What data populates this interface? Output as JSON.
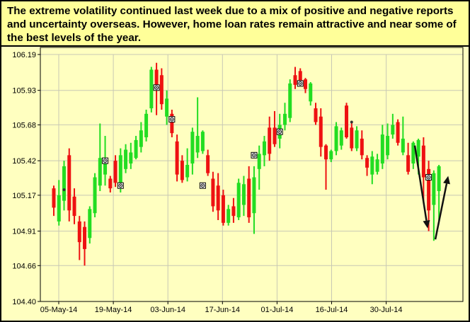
{
  "banner": {
    "text": "The extreme volatility continued last week due to a mix of positive and negative reports and uncertainty overseas.  However, home loan rates remain attractive and near some of the best levels of the year."
  },
  "colors": {
    "up": "#22dd22",
    "down": "#ee1111",
    "grid": "#c8c8b4",
    "plot_bg": "#ffffc0",
    "banner_bg": "#ffff99"
  },
  "chart_data": {
    "type": "candlestick",
    "ylim": [
      104.4,
      106.19
    ],
    "y_ticks": [
      "106.19",
      "105.93",
      "105.68",
      "105.42",
      "105.17",
      "104.91",
      "104.66",
      "104.40"
    ],
    "x_ticks": [
      "05-May-14",
      "19-May-14",
      "03-Jun-14",
      "17-Jun-14",
      "01-Jul-14",
      "16-Jul-14",
      "30-Jul-14"
    ],
    "grid": true,
    "candles": [
      {
        "dir": "down",
        "open": 105.22,
        "close": 105.08,
        "high": 105.24,
        "low": 105.02
      },
      {
        "dir": "up",
        "open": 104.98,
        "close": 105.17,
        "high": 105.28,
        "low": 104.95
      },
      {
        "dir": "up",
        "open": 105.13,
        "close": 105.38,
        "high": 105.42,
        "low": 105.06
      },
      {
        "dir": "down",
        "open": 105.46,
        "close": 105.06,
        "high": 105.51,
        "low": 104.98
      },
      {
        "dir": "down",
        "open": 105.16,
        "close": 105.02,
        "high": 105.22,
        "low": 104.96
      },
      {
        "dir": "down",
        "open": 104.98,
        "close": 104.83,
        "high": 105.02,
        "low": 104.7
      },
      {
        "dir": "down",
        "open": 104.94,
        "close": 104.78,
        "high": 104.98,
        "low": 104.66
      },
      {
        "dir": "up",
        "open": 104.86,
        "close": 105.07,
        "high": 105.09,
        "low": 104.82
      },
      {
        "dir": "up",
        "open": 105.04,
        "close": 105.3,
        "high": 105.33,
        "low": 105.01
      },
      {
        "dir": "up",
        "open": 105.24,
        "close": 105.44,
        "high": 105.69,
        "low": 105.2
      },
      {
        "dir": "up",
        "open": 105.32,
        "close": 105.44,
        "high": 105.6,
        "low": 105.24
      },
      {
        "dir": "down",
        "open": 105.29,
        "close": 105.22,
        "high": 105.31,
        "low": 105.19
      },
      {
        "dir": "down",
        "open": 105.42,
        "close": 105.26,
        "high": 105.46,
        "low": 105.23
      },
      {
        "dir": "up",
        "open": 105.26,
        "close": 105.46,
        "high": 105.51,
        "low": 105.19
      },
      {
        "dir": "up",
        "open": 105.36,
        "close": 105.5,
        "high": 105.54,
        "low": 105.33
      },
      {
        "dir": "up",
        "open": 105.4,
        "close": 105.48,
        "high": 105.55,
        "low": 105.36
      },
      {
        "dir": "up",
        "open": 105.44,
        "close": 105.57,
        "high": 105.6,
        "low": 105.43
      },
      {
        "dir": "up",
        "open": 105.52,
        "close": 105.64,
        "high": 105.7,
        "low": 105.48
      },
      {
        "dir": "up",
        "open": 105.59,
        "close": 105.76,
        "high": 105.79,
        "low": 105.56
      },
      {
        "dir": "up",
        "open": 105.8,
        "close": 106.08,
        "high": 106.1,
        "low": 105.77
      },
      {
        "dir": "down",
        "open": 106.08,
        "close": 105.93,
        "high": 106.13,
        "low": 105.75
      },
      {
        "dir": "down",
        "open": 106.04,
        "close": 105.83,
        "high": 106.09,
        "low": 105.79
      },
      {
        "dir": "up",
        "open": 105.74,
        "close": 105.87,
        "high": 105.93,
        "low": 105.68
      },
      {
        "dir": "down",
        "open": 105.76,
        "close": 105.62,
        "high": 105.79,
        "low": 105.59
      },
      {
        "dir": "down",
        "open": 105.56,
        "close": 105.32,
        "high": 105.61,
        "low": 105.27
      },
      {
        "dir": "down",
        "open": 105.42,
        "close": 105.28,
        "high": 105.46,
        "low": 105.26
      },
      {
        "dir": "up",
        "open": 105.3,
        "close": 105.39,
        "high": 105.51,
        "low": 105.27
      },
      {
        "dir": "up",
        "open": 105.4,
        "close": 105.63,
        "high": 105.66,
        "low": 105.32
      },
      {
        "dir": "up",
        "open": 105.48,
        "close": 105.6,
        "high": 105.88,
        "low": 105.44
      },
      {
        "dir": "up",
        "open": 105.49,
        "close": 105.63,
        "high": 105.64,
        "low": 105.47
      },
      {
        "dir": "down",
        "open": 105.46,
        "close": 105.33,
        "high": 105.5,
        "low": 105.31
      },
      {
        "dir": "down",
        "open": 105.29,
        "close": 105.09,
        "high": 105.34,
        "low": 105.05
      },
      {
        "dir": "down",
        "open": 105.24,
        "close": 105.06,
        "high": 105.33,
        "low": 104.99
      },
      {
        "dir": "down",
        "open": 105.17,
        "close": 104.97,
        "high": 105.21,
        "low": 104.95
      },
      {
        "dir": "up",
        "open": 104.97,
        "close": 105.07,
        "high": 105.1,
        "low": 104.95
      },
      {
        "dir": "down",
        "open": 105.09,
        "close": 105.02,
        "high": 105.15,
        "low": 104.97
      },
      {
        "dir": "up",
        "open": 105.01,
        "close": 105.26,
        "high": 105.29,
        "low": 104.99
      },
      {
        "dir": "up",
        "open": 105.1,
        "close": 105.25,
        "high": 105.31,
        "low": 105.02
      },
      {
        "dir": "down",
        "open": 105.29,
        "close": 105.01,
        "high": 105.38,
        "low": 104.97
      },
      {
        "dir": "up",
        "open": 105.04,
        "close": 105.3,
        "high": 105.38,
        "low": 104.89
      },
      {
        "dir": "up",
        "open": 105.36,
        "close": 105.47,
        "high": 105.53,
        "low": 105.21
      },
      {
        "dir": "up",
        "open": 105.46,
        "close": 105.56,
        "high": 105.6,
        "low": 105.38
      },
      {
        "dir": "down",
        "open": 105.66,
        "close": 105.47,
        "high": 105.74,
        "low": 105.42
      },
      {
        "dir": "down",
        "open": 105.66,
        "close": 105.54,
        "high": 105.78,
        "low": 105.52
      },
      {
        "dir": "up",
        "open": 105.58,
        "close": 105.68,
        "high": 105.76,
        "low": 105.51
      },
      {
        "dir": "up",
        "open": 105.68,
        "close": 105.76,
        "high": 105.84,
        "low": 105.64
      },
      {
        "dir": "up",
        "open": 105.73,
        "close": 105.98,
        "high": 106.01,
        "low": 105.7
      },
      {
        "dir": "down",
        "open": 106.04,
        "close": 105.97,
        "high": 106.1,
        "low": 105.94
      },
      {
        "dir": "down",
        "open": 106.07,
        "close": 105.98,
        "high": 106.09,
        "low": 105.96
      },
      {
        "dir": "down",
        "open": 106.01,
        "close": 105.94,
        "high": 106.02,
        "low": 105.91
      },
      {
        "dir": "up",
        "open": 105.85,
        "close": 105.98,
        "high": 105.99,
        "low": 105.82
      },
      {
        "dir": "down",
        "open": 105.8,
        "close": 105.7,
        "high": 105.84,
        "low": 105.68
      },
      {
        "dir": "down",
        "open": 105.74,
        "close": 105.52,
        "high": 105.8,
        "low": 105.45
      },
      {
        "dir": "down",
        "open": 105.53,
        "close": 105.43,
        "high": 105.54,
        "low": 105.21
      },
      {
        "dir": "up",
        "open": 105.43,
        "close": 105.49,
        "high": 105.5,
        "low": 105.41
      },
      {
        "dir": "up",
        "open": 105.49,
        "close": 105.67,
        "high": 105.7,
        "low": 105.46
      },
      {
        "dir": "up",
        "open": 105.53,
        "close": 105.64,
        "high": 105.66,
        "low": 105.5
      },
      {
        "dir": "down",
        "open": 105.82,
        "close": 105.59,
        "high": 105.84,
        "low": 105.58
      },
      {
        "dir": "down",
        "open": 105.66,
        "close": 105.51,
        "high": 105.7,
        "low": 105.49
      },
      {
        "dir": "up",
        "open": 105.51,
        "close": 105.64,
        "high": 105.67,
        "low": 105.49
      },
      {
        "dir": "down",
        "open": 105.58,
        "close": 105.46,
        "high": 105.64,
        "low": 105.43
      },
      {
        "dir": "down",
        "open": 105.44,
        "close": 105.37,
        "high": 105.46,
        "low": 105.31
      },
      {
        "dir": "up",
        "open": 105.32,
        "close": 105.45,
        "high": 105.49,
        "low": 105.25
      },
      {
        "dir": "up",
        "open": 105.34,
        "close": 105.43,
        "high": 105.47,
        "low": 105.32
      },
      {
        "dir": "up",
        "open": 105.4,
        "close": 105.61,
        "high": 105.68,
        "low": 105.36
      },
      {
        "dir": "up",
        "open": 105.46,
        "close": 105.6,
        "high": 105.69,
        "low": 105.43
      },
      {
        "dir": "up",
        "open": 105.61,
        "close": 105.68,
        "high": 105.76,
        "low": 105.58
      },
      {
        "dir": "down",
        "open": 105.7,
        "close": 105.55,
        "high": 105.72,
        "low": 105.53
      },
      {
        "dir": "up",
        "open": 105.48,
        "close": 105.58,
        "high": 105.74,
        "low": 105.46
      },
      {
        "dir": "down",
        "open": 105.46,
        "close": 105.34,
        "high": 105.55,
        "low": 105.32
      },
      {
        "dir": "up",
        "open": 105.4,
        "close": 105.55,
        "high": 105.56,
        "low": 105.36
      },
      {
        "dir": "up",
        "open": 105.45,
        "close": 105.57,
        "high": 105.58,
        "low": 105.32
      },
      {
        "dir": "down",
        "open": 105.53,
        "close": 105.3,
        "high": 105.59,
        "low": 105.12
      },
      {
        "dir": "down",
        "open": 105.36,
        "close": 105.06,
        "high": 105.42,
        "low": 104.91
      },
      {
        "dir": "up",
        "open": 105.1,
        "close": 105.33,
        "high": 105.35,
        "low": 104.84
      },
      {
        "dir": "up",
        "open": 105.2,
        "close": 105.38,
        "high": 105.39,
        "low": 104.98
      }
    ],
    "markers": [
      {
        "index": 2,
        "value": 105.21,
        "style": "dot"
      },
      {
        "index": 10,
        "value": 105.42,
        "style": "boxed-dot"
      },
      {
        "index": 13,
        "value": 105.24,
        "style": "boxed-dot"
      },
      {
        "index": 20,
        "value": 105.95,
        "style": "boxed-dot"
      },
      {
        "index": 23,
        "value": 105.72,
        "style": "boxed-dot"
      },
      {
        "index": 29,
        "value": 105.24,
        "style": "boxed-dot"
      },
      {
        "index": 39,
        "value": 105.46,
        "style": "boxed-dot"
      },
      {
        "index": 44,
        "value": 105.63,
        "style": "boxed-dot"
      },
      {
        "index": 48,
        "value": 105.98,
        "style": "boxed-dot"
      },
      {
        "index": 58,
        "value": 105.7,
        "style": "dot"
      },
      {
        "index": 73,
        "value": 105.3,
        "style": "boxed-dot"
      }
    ],
    "annotations": [
      {
        "type": "arrow",
        "direction": "down",
        "from": {
          "index": 70.3,
          "value": 105.53
        },
        "to": {
          "index": 72.8,
          "value": 104.93
        }
      },
      {
        "type": "arrow",
        "direction": "up",
        "from": {
          "index": 74.3,
          "value": 104.85
        },
        "to": {
          "index": 76.8,
          "value": 105.31
        }
      }
    ]
  }
}
